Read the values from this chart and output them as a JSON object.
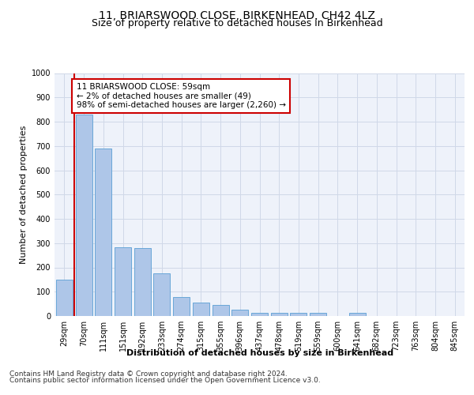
{
  "title": "11, BRIARSWOOD CLOSE, BIRKENHEAD, CH42 4LZ",
  "subtitle": "Size of property relative to detached houses in Birkenhead",
  "xlabel": "Distribution of detached houses by size in Birkenhead",
  "ylabel": "Number of detached properties",
  "footer_line1": "Contains HM Land Registry data © Crown copyright and database right 2024.",
  "footer_line2": "Contains public sector information licensed under the Open Government Licence v3.0.",
  "bar_labels": [
    "29sqm",
    "70sqm",
    "111sqm",
    "151sqm",
    "192sqm",
    "233sqm",
    "274sqm",
    "315sqm",
    "355sqm",
    "396sqm",
    "437sqm",
    "478sqm",
    "519sqm",
    "559sqm",
    "600sqm",
    "641sqm",
    "682sqm",
    "723sqm",
    "763sqm",
    "804sqm",
    "845sqm"
  ],
  "bar_values": [
    150,
    830,
    690,
    283,
    280,
    175,
    78,
    55,
    45,
    25,
    12,
    12,
    12,
    12,
    0,
    12,
    0,
    0,
    0,
    0,
    0
  ],
  "bar_color": "#aec6e8",
  "bar_edge_color": "#5a9fd4",
  "grid_color": "#d0d8e8",
  "background_color": "#eef2fa",
  "annotation_line1": "11 BRIARSWOOD CLOSE: 59sqm",
  "annotation_line2": "← 2% of detached houses are smaller (49)",
  "annotation_line3": "98% of semi-detached houses are larger (2,260) →",
  "annotation_box_color": "#cc0000",
  "red_line_x": 0.5,
  "ylim": [
    0,
    1000
  ],
  "yticks": [
    0,
    100,
    200,
    300,
    400,
    500,
    600,
    700,
    800,
    900,
    1000
  ],
  "title_fontsize": 10,
  "subtitle_fontsize": 9,
  "ylabel_fontsize": 8,
  "tick_fontsize": 7,
  "annotation_fontsize": 7.5,
  "xlabel_fontsize": 8,
  "footer_fontsize": 6.5
}
